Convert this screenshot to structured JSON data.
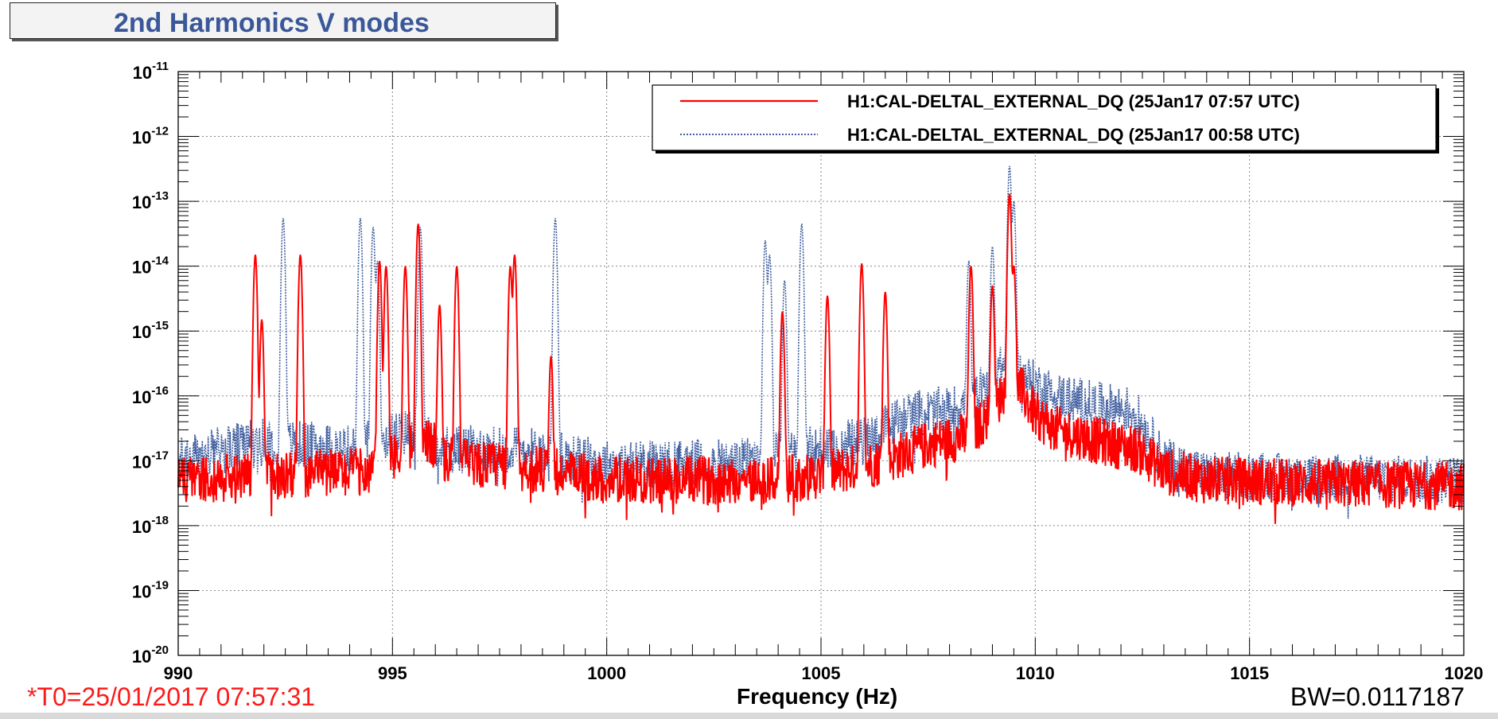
{
  "title": "2nd Harmonics V modes",
  "t0_label": "*T0=25/01/2017 07:57:31",
  "bw_label": "BW=0.0117187",
  "colors": {
    "series_red": "#ff0000",
    "series_blue": "#3f5e9f",
    "title": "#3a5899",
    "t0": "#ff1a1a"
  },
  "chart_data": {
    "type": "line",
    "title": "2nd Harmonics V modes",
    "xlabel": "Frequency (Hz)",
    "ylabel": "",
    "xlim": [
      990,
      1020
    ],
    "ylim": [
      1e-20,
      1e-11
    ],
    "yscale": "log",
    "grid": true,
    "legend_position": "top-right",
    "x_ticks": [
      990,
      995,
      1000,
      1005,
      1010,
      1015,
      1020
    ],
    "y_tick_exponents": [
      -11,
      -12,
      -13,
      -14,
      -15,
      -16,
      -17,
      -18,
      -19,
      -20
    ],
    "series": [
      {
        "name": "H1:CAL-DELTAL_EXTERNAL_DQ (25Jan17 07:57 UTC)",
        "color": "#ff0000",
        "style": "solid",
        "floor": [
          [
            990,
            5e-18
          ],
          [
            994.5,
            7e-18
          ],
          [
            995.3,
            1.5e-17
          ],
          [
            995.7,
            2.5e-17
          ],
          [
            996.3,
            1e-17
          ],
          [
            998,
            8e-18
          ],
          [
            1000,
            5e-18
          ],
          [
            1004,
            5e-18
          ],
          [
            1005,
            6e-18
          ],
          [
            1006.5,
            1e-17
          ],
          [
            1007.5,
            1.8e-17
          ],
          [
            1008.5,
            2.5e-17
          ],
          [
            1009,
            6e-17
          ],
          [
            1009.5,
            2e-16
          ],
          [
            1010,
            5e-17
          ],
          [
            1010.5,
            3e-17
          ],
          [
            1011.5,
            2e-17
          ],
          [
            1012.4,
            1.5e-17
          ],
          [
            1013,
            7e-18
          ],
          [
            1014,
            5e-18
          ],
          [
            1020,
            4e-18
          ]
        ],
        "peaks": [
          [
            991.8,
            1.5e-14
          ],
          [
            991.95,
            1.5e-15
          ],
          [
            992.85,
            1.5e-14
          ],
          [
            994.7,
            1.2e-14
          ],
          [
            994.85,
            1e-14
          ],
          [
            995.3,
            1e-14
          ],
          [
            995.6,
            4.5e-14
          ],
          [
            996.1,
            2.5e-15
          ],
          [
            996.5,
            1e-14
          ],
          [
            997.75,
            1e-14
          ],
          [
            997.85,
            1.5e-14
          ],
          [
            998.7,
            4e-16
          ],
          [
            1004.1,
            2e-15
          ],
          [
            1005.15,
            3.5e-15
          ],
          [
            1005.95,
            1.1e-14
          ],
          [
            1006.5,
            4e-15
          ],
          [
            1008.5,
            1e-14
          ],
          [
            1009.0,
            5e-15
          ],
          [
            1009.4,
            1.3e-13
          ],
          [
            1009.5,
            1e-14
          ]
        ]
      },
      {
        "name": "H1:CAL-DELTAL_EXTERNAL_DQ (25Jan17 00:58 UTC)",
        "color": "#3f5e9f",
        "style": "dotted",
        "floor": [
          [
            990,
            1e-17
          ],
          [
            992,
            2e-17
          ],
          [
            994,
            1.5e-17
          ],
          [
            995.5,
            3e-17
          ],
          [
            996.3,
            1.5e-17
          ],
          [
            998,
            1.5e-17
          ],
          [
            1000,
            9e-18
          ],
          [
            1003,
            9e-18
          ],
          [
            1004,
            1.2e-17
          ],
          [
            1006,
            2e-17
          ],
          [
            1007,
            5e-17
          ],
          [
            1008,
            6e-17
          ],
          [
            1008.5,
            8e-17
          ],
          [
            1009.3,
            3e-16
          ],
          [
            1010,
            1.5e-16
          ],
          [
            1010.5,
            1e-16
          ],
          [
            1011.5,
            7e-17
          ],
          [
            1012.3,
            6e-17
          ],
          [
            1013,
            1e-17
          ],
          [
            1014,
            6e-18
          ],
          [
            1020,
            5e-18
          ]
        ],
        "peaks": [
          [
            992.45,
            5.5e-14
          ],
          [
            994.25,
            5.5e-14
          ],
          [
            994.55,
            4e-14
          ],
          [
            994.65,
            1.2e-14
          ],
          [
            995.65,
            4e-14
          ],
          [
            998.8,
            5.5e-14
          ],
          [
            1003.7,
            2.5e-14
          ],
          [
            1003.8,
            1.5e-14
          ],
          [
            1004.15,
            6e-15
          ],
          [
            1004.55,
            4.5e-14
          ],
          [
            1008.45,
            1.2e-14
          ],
          [
            1009.0,
            2e-14
          ],
          [
            1009.4,
            3.5e-13
          ],
          [
            1009.5,
            1e-13
          ]
        ]
      }
    ]
  }
}
